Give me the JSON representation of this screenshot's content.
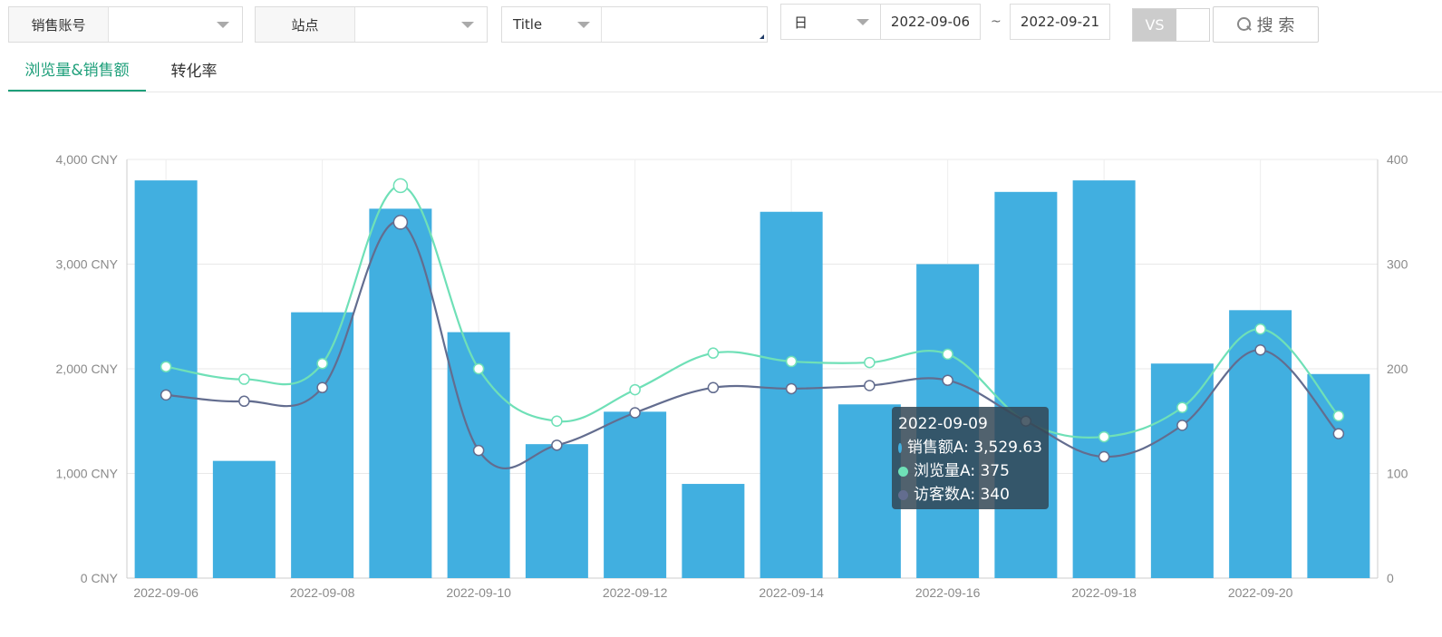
{
  "filters": {
    "account_label": "销售账号",
    "account_value": "",
    "site_label": "站点",
    "site_value": "",
    "title_select": "Title",
    "title_value": "",
    "period_select": "日",
    "date_start": "2022-09-06",
    "date_sep": "~",
    "date_end": "2022-09-21",
    "vs_label": "VS",
    "search_label": "搜 索"
  },
  "tabs": [
    {
      "label": "浏览量&销售额",
      "active": true
    },
    {
      "label": "转化率",
      "active": false
    }
  ],
  "colors": {
    "bar": "#41afe0",
    "views": "#6fe0b7",
    "visitors": "#636d8f",
    "accent": "#1e9f7a"
  },
  "chart_data": {
    "type": "bar",
    "categories": [
      "2022-09-06",
      "2022-09-07",
      "2022-09-08",
      "2022-09-09",
      "2022-09-10",
      "2022-09-11",
      "2022-09-12",
      "2022-09-13",
      "2022-09-14",
      "2022-09-15",
      "2022-09-16",
      "2022-09-17",
      "2022-09-18",
      "2022-09-19",
      "2022-09-20",
      "2022-09-21"
    ],
    "x_tick_labels": [
      "2022-09-06",
      "2022-09-08",
      "2022-09-10",
      "2022-09-12",
      "2022-09-14",
      "2022-09-16",
      "2022-09-18",
      "2022-09-20"
    ],
    "y_left": {
      "min": 0,
      "max": 4000,
      "ticks": [
        "0 CNY",
        "1,000 CNY",
        "2,000 CNY",
        "3,000 CNY",
        "4,000 CNY"
      ]
    },
    "y_right": {
      "min": 0,
      "max": 400,
      "ticks": [
        "0",
        "100",
        "200",
        "300",
        "400"
      ]
    },
    "grid": true,
    "series": [
      {
        "name": "销售额A",
        "type": "bar",
        "axis": "left",
        "values": [
          3800,
          1120,
          2540,
          3529.63,
          2350,
          1280,
          1590,
          900,
          3500,
          1660,
          3000,
          3690,
          3800,
          2050,
          2560,
          1950
        ]
      },
      {
        "name": "浏览量A",
        "type": "line",
        "axis": "right",
        "values": [
          202,
          190,
          205,
          375,
          200,
          150,
          180,
          215,
          207,
          206,
          214,
          150,
          135,
          163,
          238,
          155
        ]
      },
      {
        "name": "访客数A",
        "type": "line",
        "axis": "right",
        "values": [
          175,
          169,
          182,
          340,
          122,
          127,
          158,
          182,
          181,
          184,
          189,
          150,
          116,
          146,
          218,
          138
        ]
      }
    ],
    "tooltip": {
      "date": "2022-09-09",
      "items": [
        {
          "label": "销售额A: 3,529.63"
        },
        {
          "label": "浏览量A: 375"
        },
        {
          "label": "访客数A: 340"
        }
      ]
    }
  }
}
